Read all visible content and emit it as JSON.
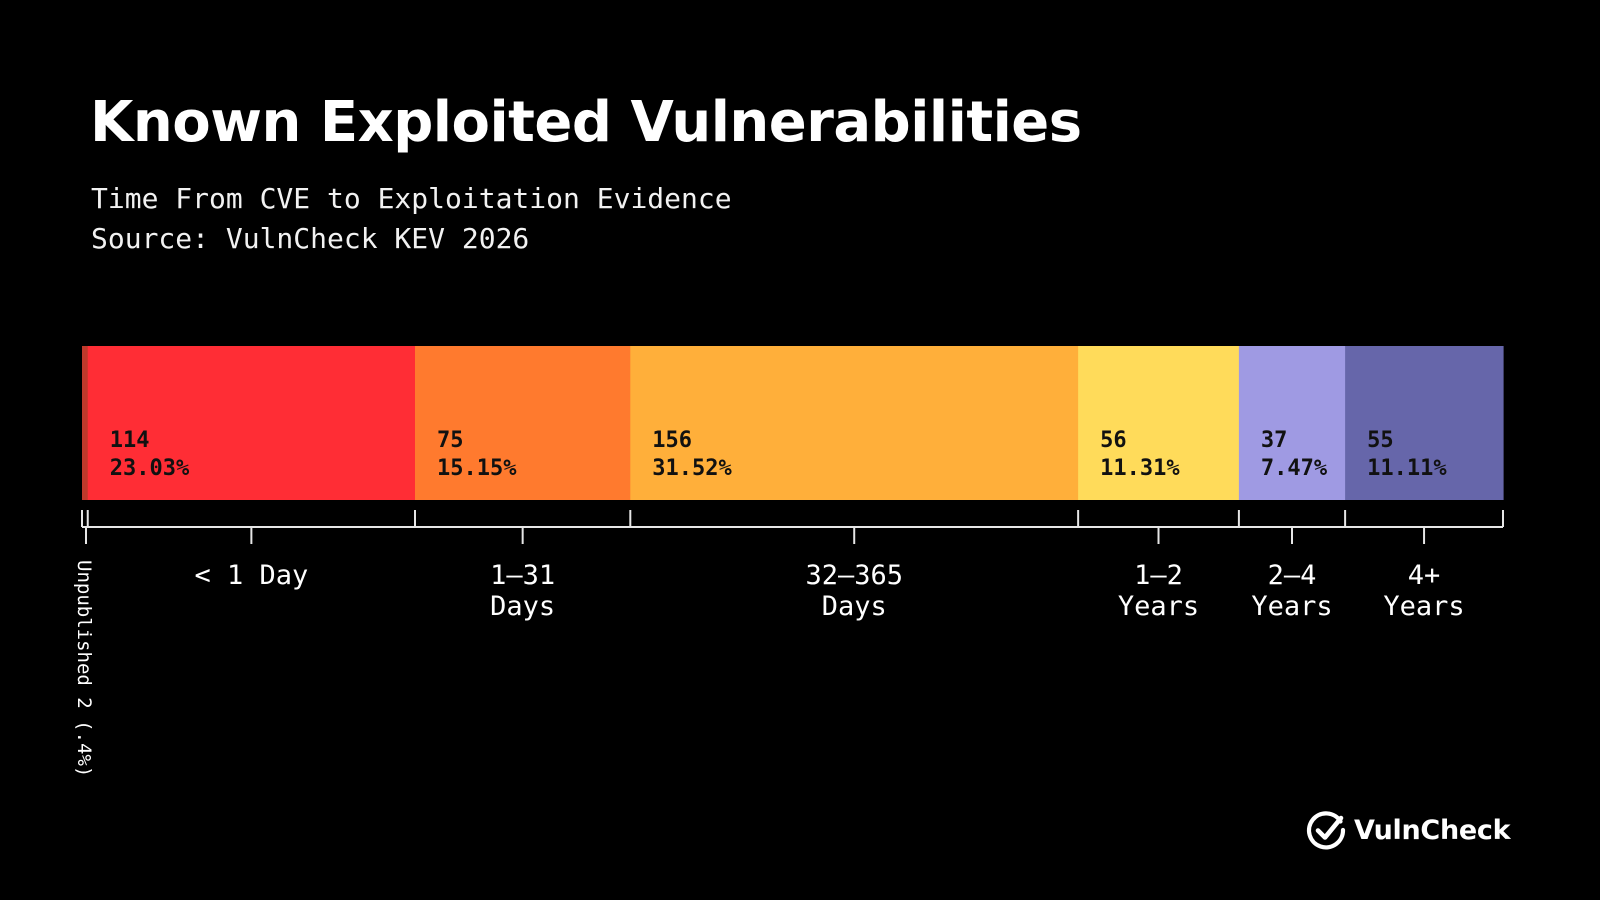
{
  "chart_data": {
    "type": "bar",
    "orientation": "horizontal-stacked",
    "title": "Known Exploited Vulnerabilities",
    "subtitle": "Time From CVE to Exploitation Evidence",
    "source": "Source: VulnCheck KEV 2026",
    "segments": [
      {
        "label": "Unpublished 2 (.4%)",
        "label_lines": [
          "Unpublished 2 (.4%)"
        ],
        "count": 2,
        "percent": 0.4,
        "count_label": "",
        "percent_label": "",
        "color": "#c0392b",
        "vertical_label": true
      },
      {
        "label": "< 1 Day",
        "label_lines": [
          "< 1 Day"
        ],
        "count": 114,
        "percent": 23.03,
        "count_label": "114",
        "percent_label": "23.03%",
        "color": "#ff2d35"
      },
      {
        "label": "1–31 Days",
        "label_lines": [
          "1–31",
          "Days"
        ],
        "count": 75,
        "percent": 15.15,
        "count_label": "75",
        "percent_label": "15.15%",
        "color": "#ff7a2e"
      },
      {
        "label": "32–365 Days",
        "label_lines": [
          "32–365",
          "Days"
        ],
        "count": 156,
        "percent": 31.52,
        "count_label": "156",
        "percent_label": "31.52%",
        "color": "#ffaf3a"
      },
      {
        "label": "1–2 Years",
        "label_lines": [
          "1–2",
          "Years"
        ],
        "count": 56,
        "percent": 11.31,
        "count_label": "56",
        "percent_label": "11.31%",
        "color": "#ffdb5a"
      },
      {
        "label": "2–4 Years",
        "label_lines": [
          "2–4",
          "Years"
        ],
        "count": 37,
        "percent": 7.47,
        "count_label": "37",
        "percent_label": "7.47%",
        "color": "#9f9ae3"
      },
      {
        "label": "4+ Years",
        "label_lines": [
          "4+",
          "Years"
        ],
        "count": 55,
        "percent": 11.11,
        "count_label": "55",
        "percent_label": "11.11%",
        "color": "#6666aa"
      }
    ],
    "label_color": "#111111",
    "axis_color": "#e6e6e6"
  },
  "brand": {
    "name": "VulnCheck",
    "logo_icon": "check-circle-icon"
  }
}
